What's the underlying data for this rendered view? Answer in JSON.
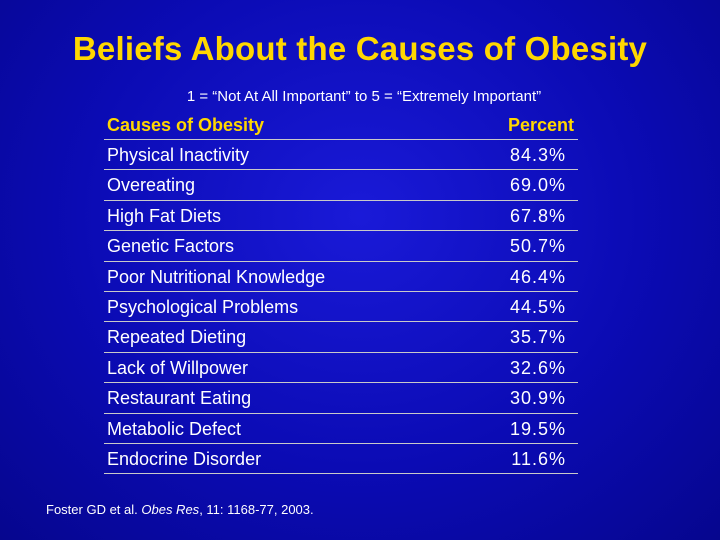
{
  "chart_data": {
    "type": "table",
    "title": "Beliefs About the Causes of Obesity",
    "subtitle": "1 = “Not At All Important”  to 5 = “Extremely Important”",
    "columns": [
      "Causes of Obesity",
      "Percent"
    ],
    "rows": [
      {
        "cause": "Physical Inactivity",
        "percent": "84.3%"
      },
      {
        "cause": "Overeating",
        "percent": "69.0%"
      },
      {
        "cause": "High Fat Diets",
        "percent": "67.8%"
      },
      {
        "cause": "Genetic Factors",
        "percent": "50.7%"
      },
      {
        "cause": "Poor Nutritional Knowledge",
        "percent": "46.4%"
      },
      {
        "cause": "Psychological Problems",
        "percent": "44.5%"
      },
      {
        "cause": "Repeated Dieting",
        "percent": "35.7%"
      },
      {
        "cause": "Lack of Willpower",
        "percent": "32.6%"
      },
      {
        "cause": "Restaurant Eating",
        "percent": "30.9%"
      },
      {
        "cause": "Metabolic Defect",
        "percent": "19.5%"
      },
      {
        "cause": "Endocrine Disorder",
        "percent": "11.6%"
      }
    ]
  },
  "citation": {
    "authors": "Foster GD et al.",
    "journal": "Obes Res",
    "details": ", 11: 1168-77, 2003."
  },
  "colors": {
    "title": "#ffd700",
    "text": "#ffffff",
    "background": "#0b0bb4",
    "rule": "#c9c9c9"
  }
}
